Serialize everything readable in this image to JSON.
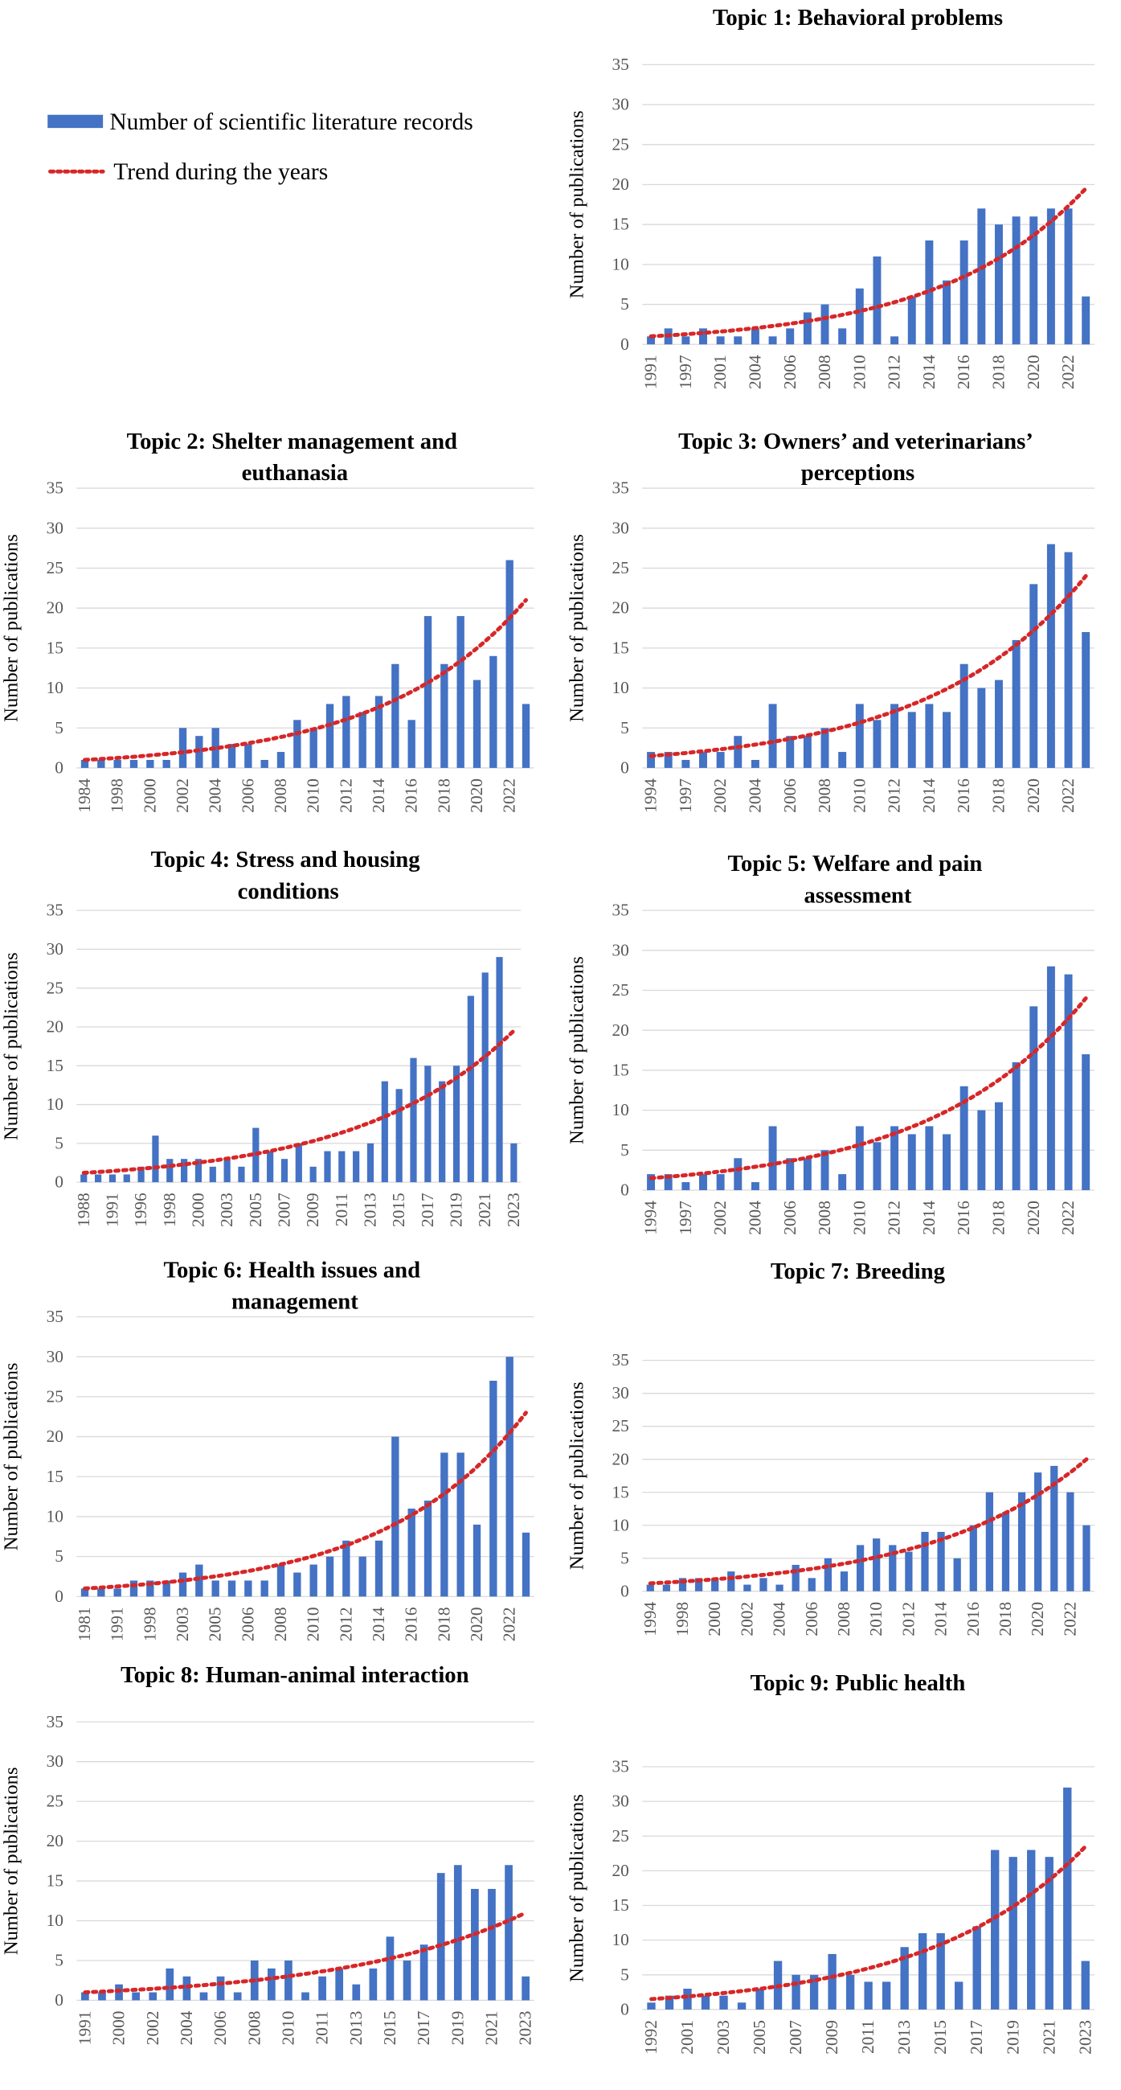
{
  "legend": [
    {
      "name": "Number of scientific literature records",
      "color": "#4472c4"
    },
    {
      "name": "Trend during the years",
      "color": "#d62728"
    }
  ],
  "chart_data": [
    {
      "type": "bar",
      "title": "Topic 1: Behavioral problems",
      "y_label": "Number of publications",
      "color": "#4472c4",
      "ylim": [
        0,
        35
      ],
      "yticks": [
        0,
        5,
        10,
        15,
        20,
        25,
        30,
        35
      ],
      "grid": true,
      "categories": [
        "1991",
        null,
        "1997",
        null,
        "2001",
        null,
        "2004",
        null,
        "2006",
        null,
        "2008",
        null,
        "2010",
        null,
        "2012",
        null,
        "2014",
        null,
        "2016",
        null,
        "2018",
        null,
        "2020",
        null,
        "2022",
        null
      ],
      "values": [
        1,
        2,
        1,
        2,
        1,
        1,
        2,
        1,
        2,
        4,
        5,
        2,
        7,
        11,
        1,
        6,
        13,
        8,
        13,
        17,
        15,
        16,
        16,
        17,
        17,
        6
      ],
      "trend": {
        "color": "#d62728",
        "start": 1,
        "end": 19.5
      }
    },
    {
      "type": "bar",
      "title": "Topic 2: Shelter management and euthanasia",
      "y_label": "Number of publications",
      "color": "#4472c4",
      "ylim": [
        0,
        35
      ],
      "yticks": [
        0,
        5,
        10,
        15,
        20,
        25,
        30,
        35
      ],
      "grid": true,
      "categories": [
        "1984",
        null,
        "1998",
        null,
        "2000",
        null,
        "2002",
        null,
        "2004",
        null,
        "2006",
        null,
        "2008",
        null,
        "2010",
        null,
        "2012",
        null,
        "2014",
        null,
        "2016",
        null,
        "2018",
        null,
        "2020",
        null,
        "2022",
        null
      ],
      "values": [
        1,
        1,
        1,
        1,
        1,
        1,
        5,
        4,
        5,
        3,
        3,
        1,
        2,
        6,
        5,
        8,
        9,
        7,
        9,
        13,
        6,
        19,
        13,
        19,
        11,
        14,
        26,
        8
      ],
      "trend": {
        "color": "#d62728",
        "start": 1,
        "end": 21
      }
    },
    {
      "type": "bar",
      "title": "Topic 3: Owners’ and veterinarians’ perceptions",
      "y_label": "Number of publications",
      "color": "#4472c4",
      "ylim": [
        0,
        35
      ],
      "yticks": [
        0,
        5,
        10,
        15,
        20,
        25,
        30,
        35
      ],
      "grid": true,
      "categories": [
        "1994",
        null,
        "1997",
        null,
        "2002",
        null,
        "2004",
        null,
        "2006",
        null,
        "2008",
        null,
        "2010",
        null,
        "2012",
        null,
        "2014",
        null,
        "2016",
        null,
        "2018",
        null,
        "2020",
        null,
        "2022",
        null
      ],
      "values": [
        2,
        2,
        1,
        2,
        2,
        4,
        1,
        8,
        4,
        4,
        5,
        2,
        8,
        6,
        8,
        7,
        8,
        7,
        13,
        10,
        11,
        16,
        23,
        28,
        27,
        17
      ],
      "trend": {
        "color": "#d62728",
        "start": 1.5,
        "end": 24
      }
    },
    {
      "type": "bar",
      "title": "Topic 4: Stress and housing conditions",
      "y_label": "Number of publications",
      "color": "#4472c4",
      "ylim": [
        0,
        35
      ],
      "yticks": [
        0,
        5,
        10,
        15,
        20,
        25,
        30,
        35
      ],
      "grid": true,
      "categories": [
        "1988",
        null,
        "1991",
        null,
        "1996",
        null,
        "1998",
        null,
        "2000",
        null,
        "2003",
        null,
        "2005",
        null,
        "2007",
        null,
        "2009",
        null,
        "2011",
        null,
        "2013",
        null,
        "2015",
        null,
        "2017",
        null,
        "2019",
        null,
        "2021",
        null,
        "2023"
      ],
      "values": [
        1,
        1,
        1,
        1,
        2,
        6,
        3,
        3,
        3,
        2,
        3,
        2,
        7,
        4,
        3,
        5,
        2,
        4,
        4,
        4,
        5,
        13,
        12,
        16,
        15,
        13,
        15,
        24,
        27,
        29,
        5
      ],
      "trend": {
        "color": "#d62728",
        "start": 1.2,
        "end": 19.5
      }
    },
    {
      "type": "bar",
      "title": "Topic 5: Welfare and pain assessment",
      "y_label": "Number of publications",
      "color": "#4472c4",
      "ylim": [
        0,
        35
      ],
      "yticks": [
        0,
        5,
        10,
        15,
        20,
        25,
        30,
        35
      ],
      "grid": true,
      "categories": [
        "1994",
        null,
        "1997",
        null,
        "2002",
        null,
        "2004",
        null,
        "2006",
        null,
        "2008",
        null,
        "2010",
        null,
        "2012",
        null,
        "2014",
        null,
        "2016",
        null,
        "2018",
        null,
        "2020",
        null,
        "2022",
        null
      ],
      "values": [
        2,
        2,
        1,
        2,
        2,
        4,
        1,
        8,
        4,
        4,
        5,
        2,
        8,
        6,
        8,
        7,
        8,
        7,
        13,
        10,
        11,
        16,
        23,
        28,
        27,
        17
      ],
      "trend": {
        "color": "#d62728",
        "start": 1.5,
        "end": 24
      }
    },
    {
      "type": "bar",
      "title": "Topic 6: Health issues and management",
      "y_label": "Number of publications",
      "color": "#4472c4",
      "ylim": [
        0,
        35
      ],
      "yticks": [
        0,
        5,
        10,
        15,
        20,
        25,
        30,
        35
      ],
      "grid": true,
      "categories": [
        "1981",
        null,
        "1991",
        null,
        "1998",
        null,
        "2003",
        null,
        "2005",
        null,
        "2006",
        null,
        "2008",
        null,
        "2010",
        null,
        "2012",
        null,
        "2014",
        null,
        "2016",
        null,
        "2018",
        null,
        "2020",
        null,
        "2022",
        null
      ],
      "values": [
        1,
        1,
        1,
        2,
        2,
        2,
        3,
        4,
        2,
        2,
        2,
        2,
        4,
        3,
        4,
        5,
        7,
        5,
        7,
        20,
        11,
        12,
        18,
        18,
        9,
        27,
        30,
        8
      ],
      "trend": {
        "color": "#d62728",
        "start": 1,
        "end": 23
      }
    },
    {
      "type": "bar",
      "title": "Topic 7: Breeding",
      "y_label": "Number of publications",
      "color": "#4472c4",
      "ylim": [
        0,
        35
      ],
      "yticks": [
        0,
        5,
        10,
        15,
        20,
        25,
        30,
        35
      ],
      "grid": true,
      "categories": [
        "1994",
        null,
        "1998",
        null,
        "2000",
        null,
        "2002",
        null,
        "2004",
        null,
        "2006",
        null,
        "2008",
        null,
        "2010",
        null,
        "2012",
        null,
        "2014",
        null,
        "2016",
        null,
        "2018",
        null,
        "2020",
        null,
        "2022",
        null
      ],
      "values": [
        1,
        1,
        2,
        2,
        2,
        3,
        1,
        2,
        1,
        4,
        2,
        5,
        3,
        7,
        8,
        7,
        6,
        9,
        9,
        5,
        10,
        15,
        12,
        15,
        18,
        19,
        15,
        10
      ],
      "trend": {
        "color": "#d62728",
        "start": 1.2,
        "end": 20
      }
    },
    {
      "type": "bar",
      "title": "Topic 8: Human-animal interaction",
      "y_label": "Number of publications",
      "color": "#4472c4",
      "ylim": [
        0,
        35
      ],
      "yticks": [
        0,
        5,
        10,
        15,
        20,
        25,
        30,
        35
      ],
      "grid": true,
      "categories": [
        "1991",
        null,
        "2000",
        null,
        "2002",
        null,
        "2004",
        null,
        "2006",
        null,
        "2008",
        null,
        "2010",
        null,
        "2011",
        null,
        "2013",
        null,
        "2015",
        null,
        "2017",
        null,
        "2019",
        null,
        "2021",
        null,
        "2023"
      ],
      "values": [
        1,
        1,
        2,
        1,
        1,
        4,
        3,
        1,
        3,
        1,
        5,
        4,
        5,
        1,
        3,
        4,
        2,
        4,
        8,
        5,
        7,
        16,
        17,
        14,
        14,
        17,
        3
      ],
      "trend": {
        "color": "#d62728",
        "start": 1,
        "end": 11
      }
    },
    {
      "type": "bar",
      "title": "Topic 9: Public health",
      "y_label": "Number of publications",
      "color": "#4472c4",
      "ylim": [
        0,
        35
      ],
      "yticks": [
        0,
        5,
        10,
        15,
        20,
        25,
        30,
        35
      ],
      "grid": true,
      "categories": [
        "1992",
        null,
        "2001",
        null,
        "2003",
        null,
        "2005",
        null,
        "2007",
        null,
        "2009",
        null,
        "2011",
        null,
        "2013",
        null,
        "2015",
        null,
        "2017",
        null,
        "2019",
        null,
        "2021",
        null,
        "2023"
      ],
      "values": [
        1,
        2,
        3,
        2,
        2,
        1,
        3,
        7,
        5,
        5,
        8,
        5,
        4,
        4,
        9,
        11,
        11,
        4,
        12,
        23,
        22,
        23,
        22,
        32,
        7
      ],
      "trend": {
        "color": "#d62728",
        "start": 1.5,
        "end": 23.5
      }
    }
  ]
}
